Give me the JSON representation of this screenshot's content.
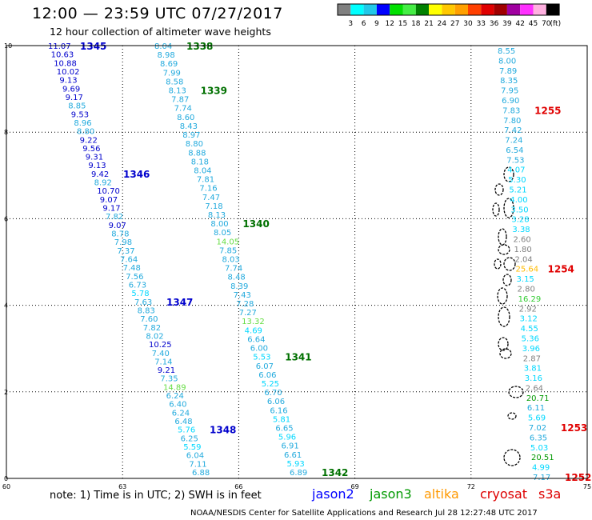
{
  "title": "12:00 — 23:59 UTC 07/27/2017",
  "subtitle": "12 hour collection of altimeter wave heights",
  "colorbar": {
    "labels": [
      "3",
      "6",
      "9",
      "12",
      "15",
      "18",
      "21",
      "24",
      "27",
      "30",
      "33",
      "36",
      "39",
      "42",
      "45",
      "70"
    ],
    "unit": "(ft)",
    "colors": [
      "#808080",
      "#00ffff",
      "#22c8e8",
      "#0000ff",
      "#00e000",
      "#44ee44",
      "#008000",
      "#ffff00",
      "#ffc800",
      "#ffa000",
      "#ff4000",
      "#e00000",
      "#a00000",
      "#a000a0",
      "#ff30ff",
      "#ffb0e0",
      "#000000"
    ]
  },
  "axes": {
    "x_ticks": [
      "60",
      "63",
      "66",
      "69",
      "72",
      "75"
    ],
    "y_ticks": [
      "0",
      "2",
      "4",
      "6",
      "8",
      "10"
    ]
  },
  "notes": {
    "text": "note:  1) Time is in UTC;  2) SWH is in feet",
    "jason2": "jason2",
    "jason3": "jason3",
    "altika": "altika",
    "cryosat": "cryosat",
    "s3a": "s3a"
  },
  "footer": "NOAA/NESDIS Center for Satellite Applications and Research    Jul 28 12:27:48 UTC 2017",
  "tracks": [
    {
      "id": "t1",
      "values": [
        "11.07",
        "10.63",
        "10.88",
        "10.02",
        "9.13",
        "9.69",
        "9.17",
        "8.85",
        "9.53",
        "8.96",
        "8.80",
        "9.22",
        "9.56",
        "9.31",
        "9.13",
        "9.42",
        "8.92",
        "10.70",
        "9.07",
        "9.17",
        "7.82",
        "9.07",
        "8.78",
        "7.98",
        "7.37",
        "7.64",
        "7.48",
        "7.56",
        "6.73",
        "5.78",
        "7.63",
        "8.83",
        "7.60",
        "7.82",
        "8.02",
        "10.25",
        "7.40",
        "7.14",
        "9.21",
        "7.35",
        "14.89",
        "6.24",
        "6.40",
        "6.24",
        "6.48",
        "5.76",
        "6.25",
        "5.59",
        "6.04",
        "7.11",
        "6.88"
      ],
      "times": [
        {
          "label": "1345",
          "index": 0,
          "color": "#0000cc"
        },
        {
          "label": "1346",
          "index": 15,
          "color": "#0000cc"
        },
        {
          "label": "1347",
          "index": 30,
          "color": "#0000cc"
        },
        {
          "label": "1348",
          "index": 45,
          "color": "#0000cc"
        }
      ]
    },
    {
      "id": "t2",
      "values": [
        "8.04",
        "8.98",
        "8.69",
        "7.99",
        "8.58",
        "8.13",
        "7.87",
        "7.74",
        "8.60",
        "8.43",
        "8.97",
        "8.80",
        "8.88",
        "8.18",
        "8.04",
        "7.81",
        "7.16",
        "7.47",
        "7.18",
        "8.13",
        "8.00",
        "8.05",
        "14.05",
        "7.85",
        "8.03",
        "7.74",
        "8.48",
        "8.39",
        "7.43",
        "7.28",
        "7.27",
        "13.32",
        "4.69",
        "6.64",
        "6.00",
        "5.53",
        "6.07",
        "6.06",
        "5.25",
        "6.70",
        "6.06",
        "6.16",
        "5.81",
        "6.65",
        "5.96",
        "6.91",
        "6.61",
        "5.93",
        "6.89"
      ],
      "times": [
        {
          "label": "1338",
          "index": 0,
          "color": "#007000"
        },
        {
          "label": "1339",
          "index": 5,
          "color": "#007000"
        },
        {
          "label": "1340",
          "index": 20,
          "color": "#007000"
        },
        {
          "label": "1341",
          "index": 35,
          "color": "#007000"
        },
        {
          "label": "1342",
          "index": 48,
          "color": "#007000"
        }
      ]
    },
    {
      "id": "t3",
      "values": [
        "8.55",
        "8.00",
        "7.89",
        "8.35",
        "7.95",
        "6.90",
        "7.83",
        "7.80",
        "7.42",
        "7.24",
        "6.54",
        "7.53",
        "4.07",
        "5.30",
        "5.21",
        "4.00",
        "3.50",
        "3.28",
        "3.38",
        "2.60",
        "1.80",
        "2.04",
        "25.64",
        "3.15",
        "2.80",
        "16.29",
        "2.92",
        "3.12",
        "4.55",
        "5.36",
        "3.96",
        "2.87",
        "3.81",
        "3.16",
        "2.64",
        "20.71",
        "6.11",
        "5.69",
        "7.02",
        "6.35",
        "5.03",
        "20.51",
        "4.99",
        "7.17"
      ],
      "times": [
        {
          "label": "1255",
          "index": 6,
          "color": "#e00000"
        },
        {
          "label": "1254",
          "index": 22,
          "color": "#e00000"
        },
        {
          "label": "1253",
          "index": 38,
          "color": "#e00000"
        },
        {
          "label": "1252",
          "index": 43,
          "color": "#e00000"
        }
      ]
    }
  ]
}
